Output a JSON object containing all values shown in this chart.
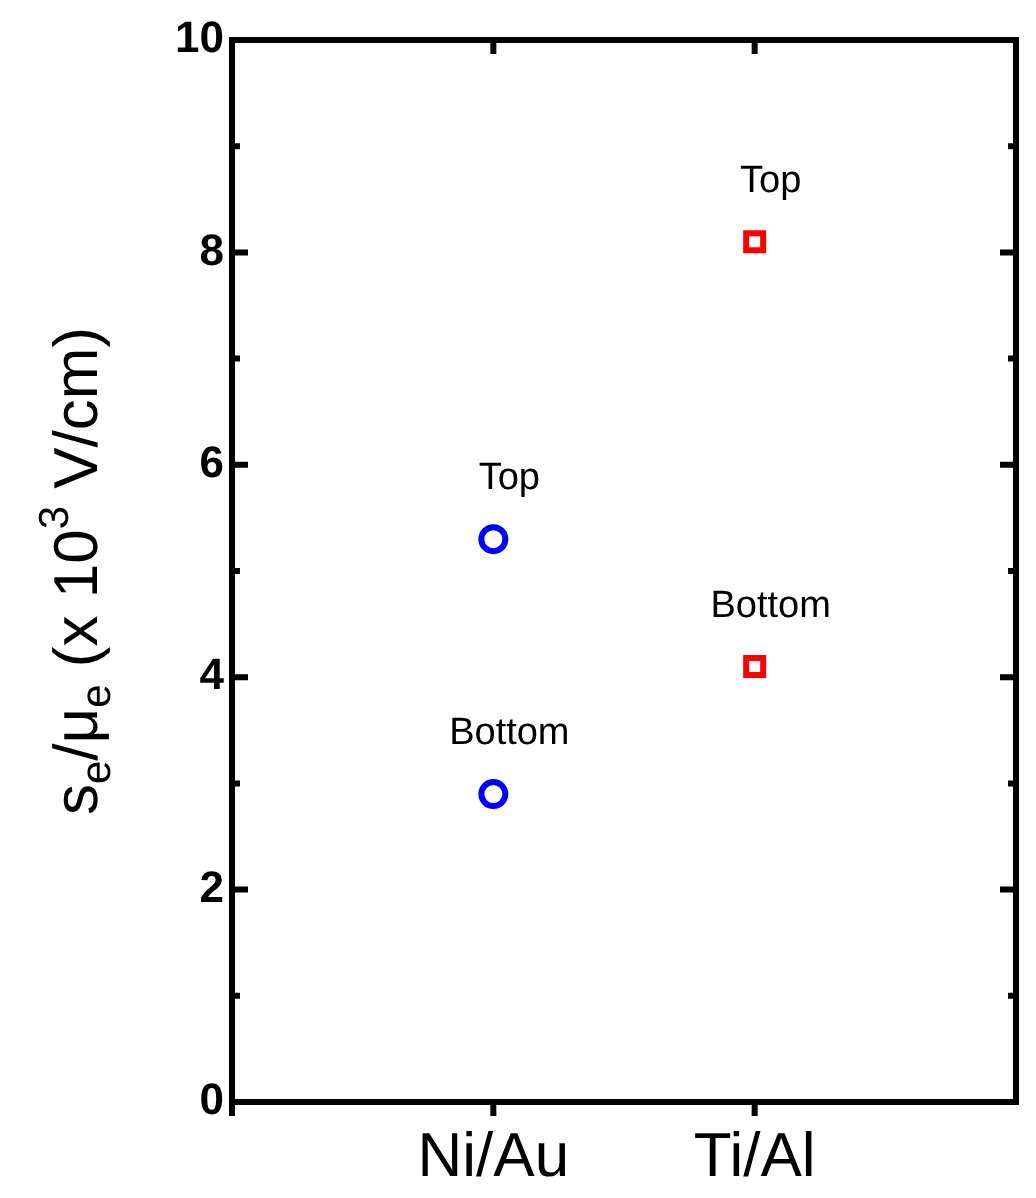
{
  "chart_data": {
    "type": "scatter",
    "ylabel": "s$_{e}$/μ$_{e}$ (x 10$^{3}$ V/cm)",
    "categories": [
      null,
      "Ni/Au",
      "Ti/Al",
      null
    ],
    "series": [
      {
        "x": [
          "Ni/Au",
          "Ni/Au"
        ],
        "values": [
          5.3,
          2.9
        ],
        "color": "#0000ff",
        "marker": "circle"
      },
      {
        "x": [
          "Ti/Al",
          "Ti/Al"
        ],
        "values": [
          8.1,
          4.1
        ],
        "color": "#ff0000",
        "marker": "square"
      }
    ],
    "ylim": [
      0,
      10
    ],
    "yticks": [
      0,
      {
        "value": 1,
        "label": null
      },
      2,
      {
        "value": 3,
        "label": null
      },
      4,
      {
        "value": 5,
        "label": null
      },
      6,
      {
        "value": 7,
        "label": null
      },
      8,
      {
        "value": 9,
        "label": null
      },
      10
    ],
    "grid": false,
    "legend": false,
    "annotations": [
      {
        "text": "Top",
        "x": "Ni/Au",
        "y": 5.3
      },
      {
        "text": "Bottom",
        "x": "Ni/Au",
        "y": 2.9
      },
      {
        "text": "Top",
        "x": "Ti/Al",
        "y": 8.1
      },
      {
        "text": "Bottom",
        "x": "Ti/Al",
        "y": 4.1
      }
    ]
  }
}
